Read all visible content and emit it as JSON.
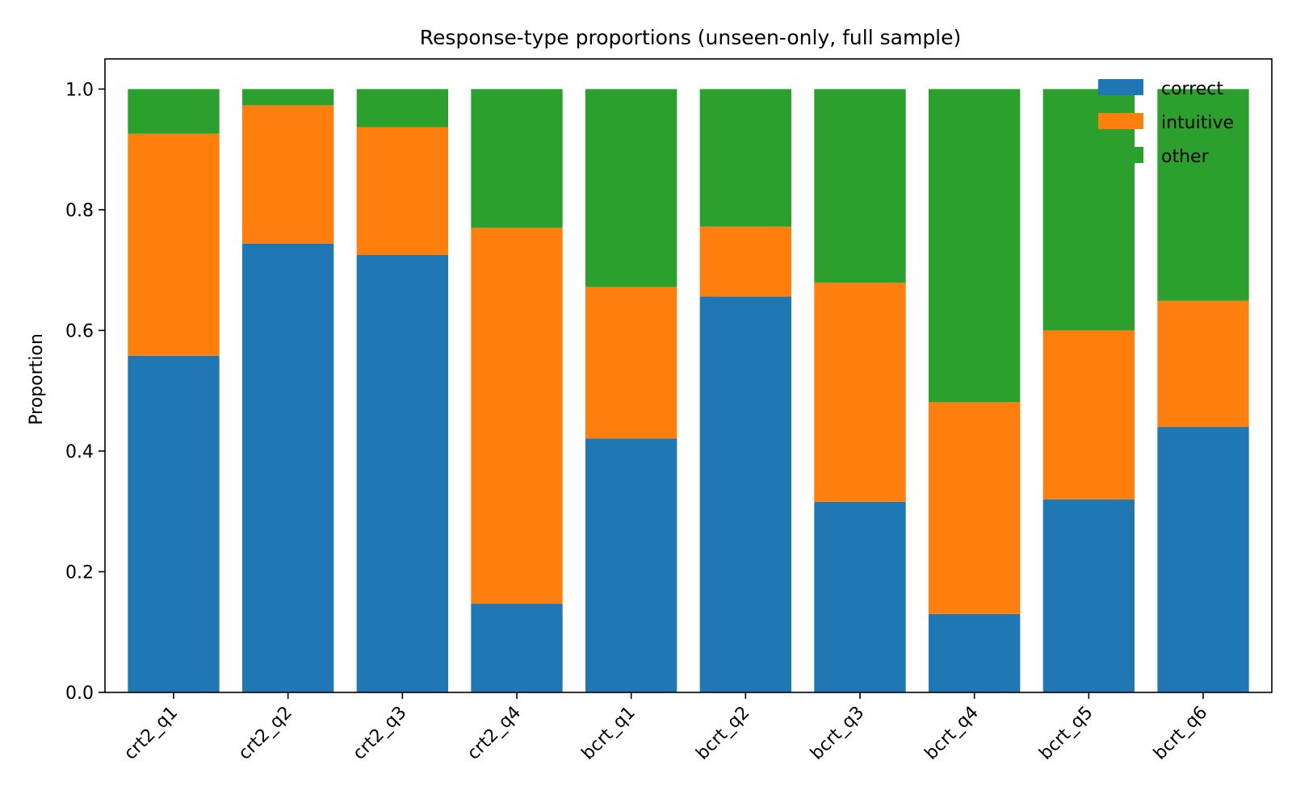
{
  "chart_data": {
    "type": "bar",
    "stacked": true,
    "title": "Response-type proportions (unseen-only, full sample)",
    "xlabel": "",
    "ylabel": "Proportion",
    "ylim": [
      0,
      1.05
    ],
    "yticks": [
      "0.0",
      "0.2",
      "0.4",
      "0.6",
      "0.8",
      "1.0"
    ],
    "ytick_values": [
      0,
      0.2,
      0.4,
      0.6,
      0.8,
      1.0
    ],
    "categories": [
      "crt2_q1",
      "crt2_q2",
      "crt2_q3",
      "crt2_q4",
      "bcrt_q1",
      "bcrt_q2",
      "bcrt_q3",
      "bcrt_q4",
      "bcrt_q5",
      "bcrt_q6"
    ],
    "series": [
      {
        "name": "correct",
        "color": "#1f77b4",
        "values": [
          0.558,
          0.744,
          0.725,
          0.147,
          0.421,
          0.656,
          0.316,
          0.13,
          0.32,
          0.44
        ]
      },
      {
        "name": "intuitive",
        "color": "#ff7f0e",
        "values": [
          0.368,
          0.229,
          0.212,
          0.623,
          0.251,
          0.116,
          0.363,
          0.351,
          0.28,
          0.209
        ]
      },
      {
        "name": "other",
        "color": "#2ca02c",
        "values": [
          0.074,
          0.027,
          0.063,
          0.23,
          0.328,
          0.228,
          0.321,
          0.519,
          0.4,
          0.351
        ]
      }
    ],
    "legend_position": "top-right",
    "grid": false
  }
}
